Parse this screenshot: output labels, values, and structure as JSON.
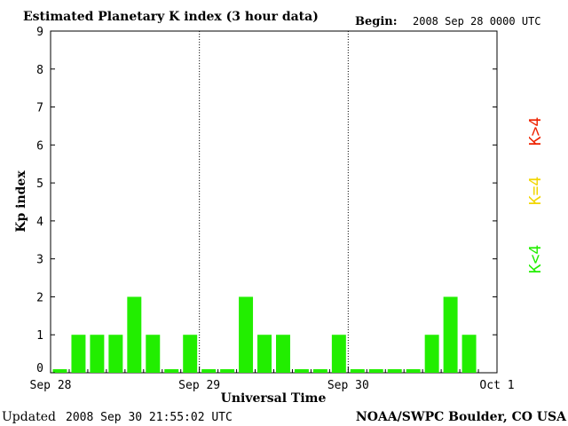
{
  "header": {
    "title": "Estimated Planetary K index (3 hour data)",
    "begin_label": "Begin:",
    "begin_value": "2008 Sep 28 0000 UTC"
  },
  "footer": {
    "updated_label": "Updated",
    "updated_value": "2008 Sep 30 21:55:02 UTC",
    "source": "NOAA/SWPC Boulder, CO USA"
  },
  "legend": {
    "high": "K>4",
    "equal": "K=4",
    "low": "K<4"
  },
  "colors": {
    "low": "#22ee00",
    "equal": "#f2d600",
    "high": "#ee2200",
    "axis": "#000000",
    "background": "#ffffff"
  },
  "chart_data": {
    "type": "bar",
    "title": "Estimated Planetary K index (3 hour data)",
    "xlabel": "Universal Time",
    "ylabel": "Kp index",
    "ylim": [
      0,
      9
    ],
    "yticks": [
      "0",
      "1",
      "2",
      "3",
      "4",
      "5",
      "6",
      "7",
      "8",
      "9"
    ],
    "xticks": [
      "Sep 28",
      "Sep 29",
      "Sep 30",
      "Oct 1"
    ],
    "day_dividers": "dotted",
    "grid": false,
    "bins_per_day": 8,
    "values": [
      0,
      1,
      1,
      1,
      2,
      1,
      0,
      1,
      0,
      0,
      2,
      1,
      1,
      0,
      0,
      1,
      0,
      0,
      0,
      0,
      1,
      2,
      1
    ]
  }
}
